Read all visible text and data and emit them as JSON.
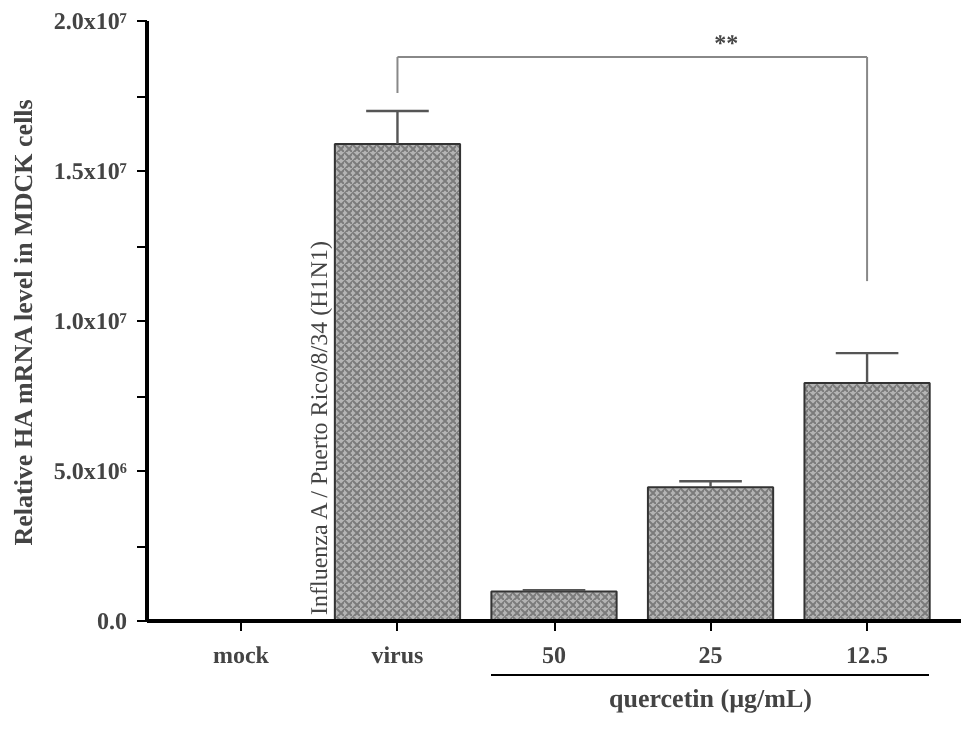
{
  "chart_data": {
    "type": "bar",
    "ylabel": "Relative HA mRNA level in MDCK cells",
    "xlabel": "quercetin (µg/mL)",
    "categories": [
      "mock",
      "virus",
      "50",
      "25",
      "12.5"
    ],
    "values": [
      0,
      15900000,
      980000,
      4460000,
      7930000
    ],
    "errors": [
      null,
      1100000,
      50000,
      200000,
      1000000
    ],
    "color": "#b4b4b4",
    "ylim": [
      0,
      20000000
    ],
    "yticks": [
      {
        "value": 0,
        "label": "0.0"
      },
      {
        "value": 2500000,
        "label": null
      },
      {
        "value": 5000000,
        "label": "5.0x10⁶"
      },
      {
        "value": 7500000,
        "label": null
      },
      {
        "value": 10000000,
        "label": "1.0x10⁷"
      },
      {
        "value": 12500000,
        "label": null
      },
      {
        "value": 15000000,
        "label": "1.5x10⁷"
      },
      {
        "value": 17500000,
        "label": null
      },
      {
        "value": 20000000,
        "label": "2.0x10⁷"
      }
    ],
    "annotations": [
      "Influenza A / Puerto Rico/8/34 (H1N1)",
      "**"
    ],
    "grid": false
  }
}
